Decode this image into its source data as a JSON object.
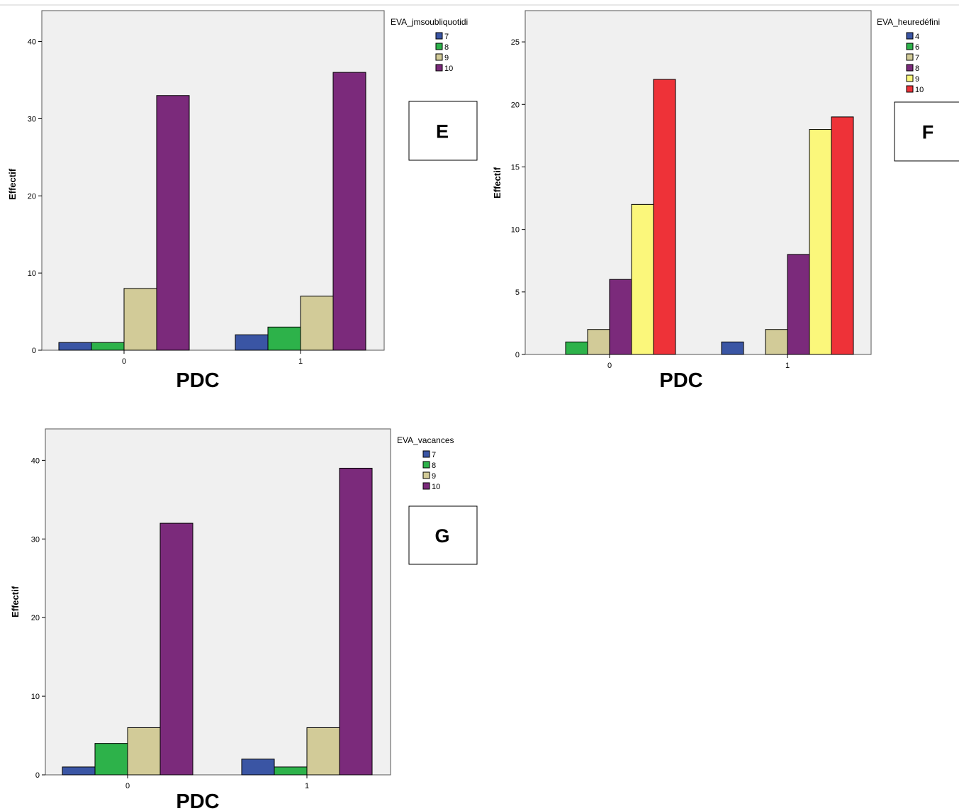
{
  "chart_data": [
    {
      "type": "bar",
      "panel_label": "E",
      "xlabel": "PDC",
      "ylabel": "Effectif",
      "legend_title": "EVA_jmsoubliquotidi",
      "categories": [
        "0",
        "1"
      ],
      "ylim": [
        0,
        44
      ],
      "yticks": [
        0,
        10,
        20,
        30,
        40
      ],
      "series": [
        {
          "name": "7",
          "color": "#3a55a4",
          "values": [
            1,
            2
          ]
        },
        {
          "name": "8",
          "color": "#2db24a",
          "values": [
            1,
            3
          ]
        },
        {
          "name": "9",
          "color": "#d2cb98",
          "values": [
            8,
            7
          ]
        },
        {
          "name": "10",
          "color": "#7b2a7b",
          "values": [
            33,
            36
          ]
        }
      ],
      "grid": false,
      "legend_position": "top-right"
    },
    {
      "type": "bar",
      "panel_label": "F",
      "xlabel": "PDC",
      "ylabel": "Effectif",
      "legend_title": "EVA_heuredéfini",
      "categories": [
        "0",
        "1"
      ],
      "ylim": [
        0,
        27.5
      ],
      "yticks": [
        0,
        5,
        10,
        15,
        20,
        25
      ],
      "series": [
        {
          "name": "4",
          "color": "#3a55a4",
          "values": [
            0,
            1
          ]
        },
        {
          "name": "6",
          "color": "#2db24a",
          "values": [
            1,
            0
          ]
        },
        {
          "name": "7",
          "color": "#d2cb98",
          "values": [
            2,
            2
          ]
        },
        {
          "name": "8",
          "color": "#7b2a7b",
          "values": [
            6,
            8
          ]
        },
        {
          "name": "9",
          "color": "#fbf77b",
          "values": [
            12,
            18
          ]
        },
        {
          "name": "10",
          "color": "#ee3238",
          "values": [
            22,
            19
          ]
        }
      ],
      "grid": false,
      "legend_position": "top-right"
    },
    {
      "type": "bar",
      "panel_label": "G",
      "xlabel": "PDC",
      "ylabel": "Effectif",
      "legend_title": "EVA_vacances",
      "categories": [
        "0",
        "1"
      ],
      "ylim": [
        0,
        44
      ],
      "yticks": [
        0,
        10,
        20,
        30,
        40
      ],
      "series": [
        {
          "name": "7",
          "color": "#3a55a4",
          "values": [
            1,
            2
          ]
        },
        {
          "name": "8",
          "color": "#2db24a",
          "values": [
            4,
            1
          ]
        },
        {
          "name": "9",
          "color": "#d2cb98",
          "values": [
            6,
            6
          ]
        },
        {
          "name": "10",
          "color": "#7b2a7b",
          "values": [
            32,
            39
          ]
        }
      ],
      "grid": false,
      "legend_position": "top-right"
    }
  ]
}
